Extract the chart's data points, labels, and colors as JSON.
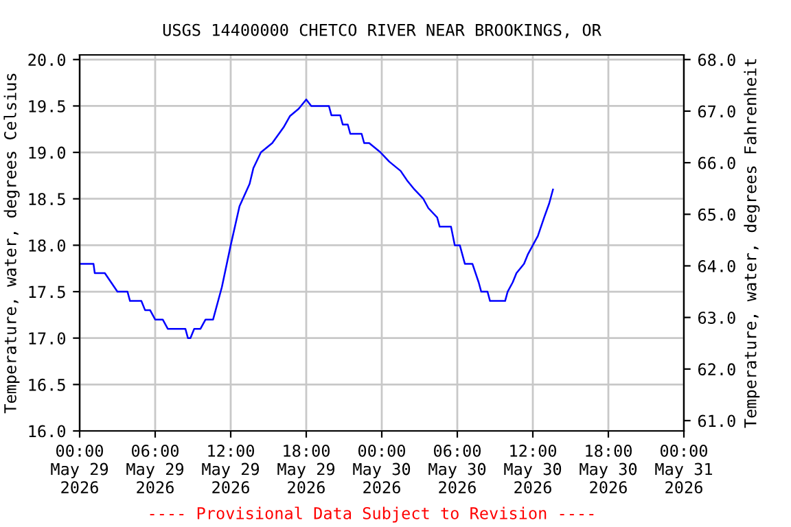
{
  "chart_data": {
    "type": "line",
    "title": "USGS 14400000 CHETCO RIVER NEAR BROOKINGS, OR",
    "ylabel": "Temperature, water, degrees Celsius",
    "y2label": "Temperature, water, degrees Fahrenheit",
    "x": [
      "2026-05-29T00:00",
      "2026-05-29T01:06",
      "2026-05-29T01:12",
      "2026-05-29T02:00",
      "2026-05-29T02:30",
      "2026-05-29T03:00",
      "2026-05-29T03:48",
      "2026-05-29T04:00",
      "2026-05-29T04:54",
      "2026-05-29T05:12",
      "2026-05-29T05:36",
      "2026-05-29T06:00",
      "2026-05-29T06:36",
      "2026-05-29T07:00",
      "2026-05-29T08:24",
      "2026-05-29T08:36",
      "2026-05-29T08:48",
      "2026-05-29T09:06",
      "2026-05-29T09:36",
      "2026-05-29T10:00",
      "2026-05-29T10:36",
      "2026-05-29T11:18",
      "2026-05-29T12:00",
      "2026-05-29T12:42",
      "2026-05-29T13:30",
      "2026-05-29T13:48",
      "2026-05-29T14:24",
      "2026-05-29T15:18",
      "2026-05-29T16:12",
      "2026-05-29T16:42",
      "2026-05-29T17:24",
      "2026-05-29T18:00",
      "2026-05-29T18:24",
      "2026-05-29T19:48",
      "2026-05-29T20:00",
      "2026-05-29T20:42",
      "2026-05-29T20:54",
      "2026-05-29T21:18",
      "2026-05-29T21:30",
      "2026-05-29T22:24",
      "2026-05-29T22:36",
      "2026-05-29T23:00",
      "2026-05-29T23:54",
      "2026-05-30T00:36",
      "2026-05-30T01:30",
      "2026-05-30T02:00",
      "2026-05-30T02:36",
      "2026-05-30T03:18",
      "2026-05-30T03:42",
      "2026-05-30T04:24",
      "2026-05-30T04:36",
      "2026-05-30T05:30",
      "2026-05-30T05:48",
      "2026-05-30T06:12",
      "2026-05-30T06:36",
      "2026-05-30T07:12",
      "2026-05-30T07:42",
      "2026-05-30T07:54",
      "2026-05-30T08:24",
      "2026-05-30T08:36",
      "2026-05-30T09:48",
      "2026-05-30T10:00",
      "2026-05-30T10:24",
      "2026-05-30T10:42",
      "2026-05-30T11:18",
      "2026-05-30T11:36",
      "2026-05-30T12:00",
      "2026-05-30T12:24",
      "2026-05-30T12:54",
      "2026-05-30T13:18",
      "2026-05-30T13:36"
    ],
    "series": [
      {
        "color": "#0000ff",
        "values": [
          17.8,
          17.8,
          17.7,
          17.7,
          17.6,
          17.5,
          17.5,
          17.4,
          17.4,
          17.3,
          17.3,
          17.2,
          17.2,
          17.1,
          17.1,
          17.0,
          17.0,
          17.1,
          17.1,
          17.2,
          17.2,
          17.55,
          18.0,
          18.42,
          18.66,
          18.83,
          19.0,
          19.1,
          19.27,
          19.39,
          19.47,
          19.57,
          19.5,
          19.5,
          19.4,
          19.4,
          19.3,
          19.3,
          19.2,
          19.2,
          19.1,
          19.1,
          19.0,
          18.9,
          18.8,
          18.7,
          18.6,
          18.5,
          18.4,
          18.3,
          18.2,
          18.2,
          18.0,
          18.0,
          17.8,
          17.8,
          17.6,
          17.5,
          17.5,
          17.4,
          17.4,
          17.5,
          17.6,
          17.7,
          17.8,
          17.9,
          18.0,
          18.1,
          18.3,
          18.45,
          18.6
        ]
      }
    ],
    "xlim": [
      "2026-05-29T00:00",
      "2026-05-31T00:00"
    ],
    "xticks": [
      {
        "value": "2026-05-29T00:00",
        "label": "00:00\nMay 29\n2026"
      },
      {
        "value": "2026-05-29T06:00",
        "label": "06:00\nMay 29\n2026"
      },
      {
        "value": "2026-05-29T12:00",
        "label": "12:00\nMay 29\n2026"
      },
      {
        "value": "2026-05-29T18:00",
        "label": "18:00\nMay 29\n2026"
      },
      {
        "value": "2026-05-30T00:00",
        "label": "00:00\nMay 30\n2026"
      },
      {
        "value": "2026-05-30T06:00",
        "label": "06:00\nMay 30\n2026"
      },
      {
        "value": "2026-05-30T12:00",
        "label": "12:00\nMay 30\n2026"
      },
      {
        "value": "2026-05-30T18:00",
        "label": "18:00\nMay 30\n2026"
      },
      {
        "value": "2026-05-31T00:00",
        "label": "00:00\nMay 31\n2026"
      }
    ],
    "ylim": [
      16.0,
      20.05
    ],
    "yticks": [
      {
        "value": 16,
        "label": "16.0"
      },
      {
        "value": 16.5,
        "label": "16.5"
      },
      {
        "value": 17,
        "label": "17.0"
      },
      {
        "value": 17.5,
        "label": "17.5"
      },
      {
        "value": 18,
        "label": "18.0"
      },
      {
        "value": 18.5,
        "label": "18.5"
      },
      {
        "value": 19,
        "label": "19.0"
      },
      {
        "value": 19.5,
        "label": "19.5"
      },
      {
        "value": 20,
        "label": "20.0"
      }
    ],
    "y2lim": [
      60.8,
      68.09
    ],
    "y2ticks": [
      {
        "value": 61,
        "label": "61.0"
      },
      {
        "value": 62,
        "label": "62.0"
      },
      {
        "value": 63,
        "label": "63.0"
      },
      {
        "value": 64,
        "label": "64.0"
      },
      {
        "value": 65,
        "label": "65.0"
      },
      {
        "value": 66,
        "label": "66.0"
      },
      {
        "value": 67,
        "label": "67.0"
      },
      {
        "value": 68,
        "label": "68.0"
      }
    ],
    "grid": true,
    "line_style": "solid",
    "annotations": [
      "---- Provisional Data Subject to Revision ----"
    ]
  }
}
